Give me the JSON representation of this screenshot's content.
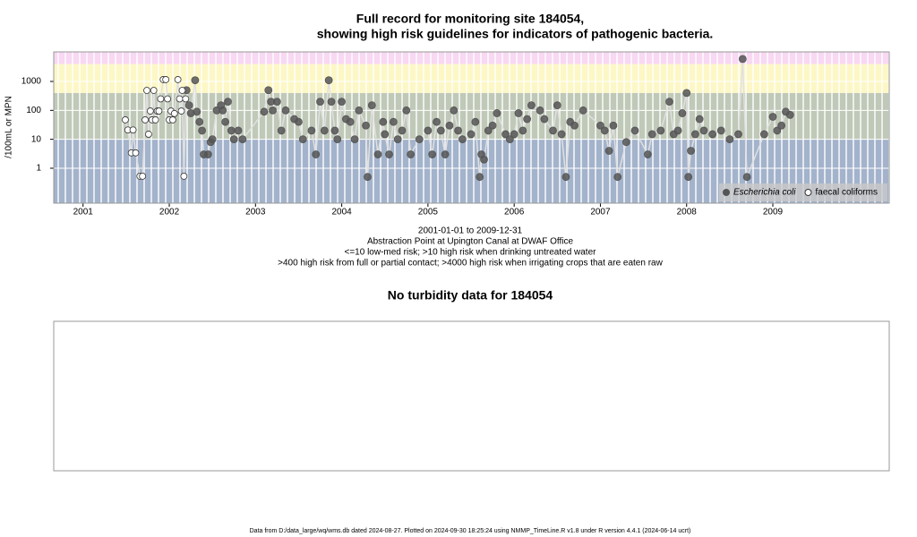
{
  "chart_data": [
    {
      "type": "scatter",
      "title": [
        "Full record for monitoring site 184054,",
        "showing high risk guidelines for indicators of pathogenic bacteria."
      ],
      "y_label": "/100mL or MPN",
      "notes": [
        "2001-01-01 to 2009-12-31",
        "Abstraction Point at Upington Canal at DWAF Office",
        "<=10 low-med risk; >10 high risk when drinking untreated water",
        ">400 high risk from full or partial contact; >4000 high risk when irrigating crops that are eaten raw"
      ],
      "log_y": true,
      "xlim": [
        2000.66,
        2010.35
      ],
      "xticks": [
        2001,
        2002,
        2003,
        2004,
        2005,
        2006,
        2007,
        2008,
        2009
      ],
      "ylim": [
        0.062,
        10500
      ],
      "yticks": [
        1,
        10,
        100,
        1000
      ],
      "grid": true,
      "band_breaks": [
        10,
        400,
        4000
      ],
      "band_colors": [
        "#a3b3cb",
        "#c0c9b8",
        "#fdf7c6",
        "#f8d8f3"
      ],
      "legend": "bottom right",
      "series": [
        {
          "name": "Escherichia coli",
          "color": "#555555",
          "filled": true,
          "x": [
            2002.2,
            2002.23,
            2002.25,
            2002.3,
            2002.32,
            2002.35,
            2002.38,
            2002.4,
            2002.45,
            2002.48,
            2002.5,
            2002.55,
            2002.6,
            2002.62,
            2002.65,
            2002.68,
            2002.72,
            2002.75,
            2002.8,
            2002.85,
            2003.1,
            2003.15,
            2003.18,
            2003.2,
            2003.25,
            2003.3,
            2003.35,
            2003.45,
            2003.5,
            2003.55,
            2003.65,
            2003.7,
            2003.75,
            2003.8,
            2003.85,
            2003.88,
            2003.92,
            2003.95,
            2004.0,
            2004.05,
            2004.1,
            2004.15,
            2004.2,
            2004.28,
            2004.3,
            2004.35,
            2004.42,
            2004.48,
            2004.5,
            2004.55,
            2004.6,
            2004.65,
            2004.7,
            2004.75,
            2004.8,
            2004.9,
            2005.0,
            2005.05,
            2005.1,
            2005.15,
            2005.2,
            2005.25,
            2005.3,
            2005.35,
            2005.4,
            2005.5,
            2005.55,
            2005.6,
            2005.62,
            2005.65,
            2005.7,
            2005.75,
            2005.8,
            2005.9,
            2005.95,
            2006.0,
            2006.05,
            2006.1,
            2006.15,
            2006.2,
            2006.3,
            2006.35,
            2006.45,
            2006.5,
            2006.55,
            2006.6,
            2006.65,
            2006.7,
            2006.8,
            2007.0,
            2007.05,
            2007.1,
            2007.15,
            2007.2,
            2007.3,
            2007.4,
            2007.55,
            2007.6,
            2007.7,
            2007.8,
            2007.85,
            2007.9,
            2007.95,
            2008.0,
            2008.02,
            2008.05,
            2008.1,
            2008.15,
            2008.2,
            2008.3,
            2008.4,
            2008.5,
            2008.6,
            2008.65,
            2008.7,
            2008.9,
            2009.0,
            2009.05,
            2009.1,
            2009.15,
            2009.2
          ],
          "values": [
            500,
            150,
            80,
            1100,
            90,
            40,
            20,
            3,
            3,
            8,
            10,
            100,
            150,
            100,
            40,
            200,
            20,
            10,
            20,
            10,
            90,
            500,
            200,
            100,
            200,
            20,
            100,
            50,
            40,
            10,
            20,
            3,
            200,
            20,
            1100,
            200,
            20,
            10,
            200,
            50,
            40,
            10,
            100,
            30,
            0.5,
            150,
            3,
            40,
            15,
            3,
            40,
            10,
            20,
            100,
            3,
            10,
            20,
            3,
            40,
            20,
            3,
            30,
            100,
            20,
            10,
            15,
            40,
            0.5,
            3,
            2,
            20,
            30,
            80,
            15,
            10,
            15,
            80,
            20,
            50,
            150,
            100,
            50,
            20,
            150,
            15,
            0.5,
            40,
            30,
            100,
            30,
            20,
            4,
            30,
            0.5,
            8,
            20,
            3,
            15,
            20,
            200,
            15,
            20,
            80,
            400,
            0.5,
            4,
            15,
            50,
            20,
            15,
            20,
            10,
            15,
            6000,
            0.5,
            15,
            60,
            20,
            30,
            90,
            70
          ]
        },
        {
          "name": "faecal coliforms",
          "color": "#333333",
          "filled": false,
          "x": [
            2001.49,
            2001.52,
            2001.56,
            2001.58,
            2001.61,
            2001.66,
            2001.69,
            2001.72,
            2001.74,
            2001.76,
            2001.78,
            2001.8,
            2001.82,
            2001.84,
            2001.86,
            2001.88,
            2001.9,
            2001.93,
            2001.96,
            2001.98,
            2002.0,
            2002.02,
            2002.04,
            2002.06,
            2002.1,
            2002.12,
            2002.14,
            2002.15,
            2002.17,
            2002.19
          ],
          "values": [
            47,
            21,
            3.4,
            21,
            3.4,
            0.53,
            0.53,
            47,
            490,
            15,
            95,
            47,
            490,
            47,
            95,
            95,
            250,
            1160,
            1160,
            250,
            47,
            95,
            47,
            78,
            1160,
            250,
            95,
            490,
            0.53,
            250
          ]
        }
      ]
    },
    {
      "type": "empty",
      "title": "No turbidity data for 184054"
    }
  ],
  "footer": "Data from D:/data_large/wq/wms.db dated 2024-08-27. Plotted on 2024-09-30 18:25:24 using NMMP_TimeLine.R v1.8 under R version 4.4.1 (2024-06-14 ucrt)"
}
